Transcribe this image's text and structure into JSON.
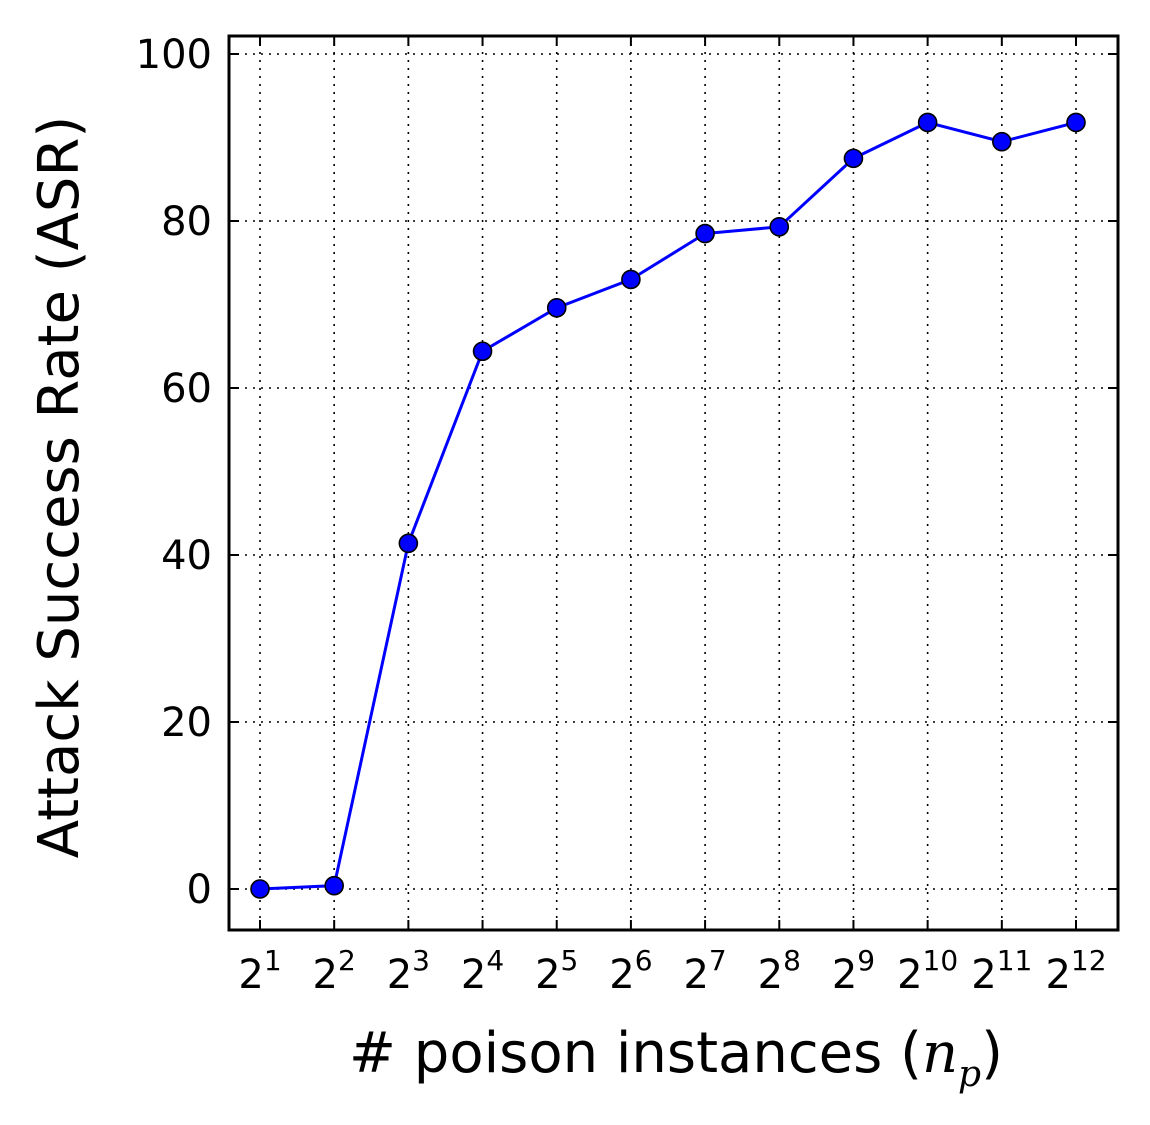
{
  "chart_data": {
    "type": "line",
    "xlabel": "# poison instances",
    "xlabel_math": "n",
    "xlabel_math_sub": "p",
    "ylabel": "Attack Success Rate (ASR)",
    "x_ticks": [
      {
        "base": "2",
        "exp": "1"
      },
      {
        "base": "2",
        "exp": "2"
      },
      {
        "base": "2",
        "exp": "3"
      },
      {
        "base": "2",
        "exp": "4"
      },
      {
        "base": "2",
        "exp": "5"
      },
      {
        "base": "2",
        "exp": "6"
      },
      {
        "base": "2",
        "exp": "7"
      },
      {
        "base": "2",
        "exp": "8"
      },
      {
        "base": "2",
        "exp": "9"
      },
      {
        "base": "2",
        "exp": "10"
      },
      {
        "base": "2",
        "exp": "11"
      },
      {
        "base": "2",
        "exp": "12"
      }
    ],
    "y_ticks": [
      "0",
      "20",
      "40",
      "60",
      "80",
      "100"
    ],
    "ylim": [
      -5,
      102
    ],
    "x_log2": [
      1,
      2,
      3,
      4,
      5,
      6,
      7,
      8,
      9,
      10,
      11,
      12
    ],
    "values": [
      0,
      0.4,
      41.4,
      64.4,
      69.6,
      73.0,
      78.5,
      79.3,
      87.5,
      91.8,
      89.5,
      91.8
    ],
    "grid": true,
    "line_color": "#0000ff",
    "marker_color": "#0000ff"
  }
}
